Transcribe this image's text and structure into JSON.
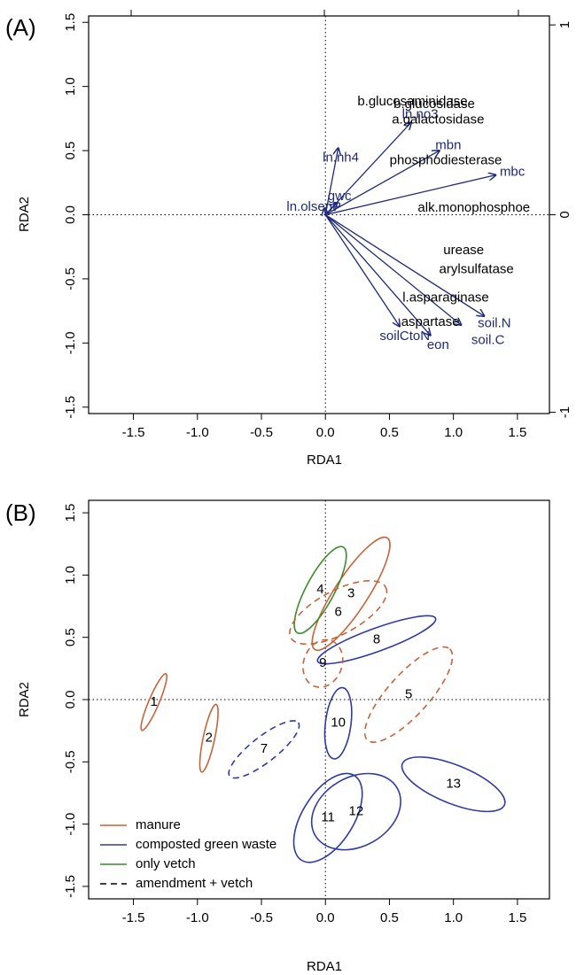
{
  "colors": {
    "manure": "#c8643a",
    "compost": "#2e3aa8",
    "vetch": "#3c8c2a",
    "vector": "#1e2a78",
    "enzyme_label": "#000000"
  },
  "chart_data": [
    {
      "panel": "(A)",
      "type": "biplot",
      "xlabel": "RDA1",
      "ylabel": "RDA2",
      "xlim": [
        -1.85,
        1.75
      ],
      "ylim": [
        -1.55,
        1.55
      ],
      "xticks": [
        "-1.5",
        "-1.0",
        "-0.5",
        "0.0",
        "0.5",
        "1.0",
        "1.5"
      ],
      "yticks": [
        "-1.5",
        "-1.0",
        "-0.5",
        "0.0",
        "0.5",
        "1.0",
        "1.5"
      ],
      "top_ticks": [],
      "right_ticks": [
        "-1",
        "0",
        "1"
      ],
      "vectors": [
        {
          "name": "ln.nh4",
          "x": 0.1,
          "y": 0.52
        },
        {
          "name": "ln.no3",
          "x": 0.67,
          "y": 0.72
        },
        {
          "name": "mbn",
          "x": 0.89,
          "y": 0.5
        },
        {
          "name": "mbc",
          "x": 1.33,
          "y": 0.31
        },
        {
          "name": "gwc",
          "x": 0.09,
          "y": 0.09
        },
        {
          "name": "ln.olsenP",
          "x": -0.01,
          "y": 0.05
        },
        {
          "name": "soilCtoN",
          "x": 0.58,
          "y": -0.87
        },
        {
          "name": "eon",
          "x": 0.82,
          "y": -0.94
        },
        {
          "name": "soil.C",
          "x": 1.06,
          "y": -0.86
        },
        {
          "name": "soil.N",
          "x": 1.24,
          "y": -0.79
        }
      ],
      "vector_labels": [
        {
          "text": "ln.nh4",
          "x": 0.12,
          "y": 0.44
        },
        {
          "text": "ln.no3",
          "x": 0.74,
          "y": 0.78
        },
        {
          "text": "mbn",
          "x": 0.96,
          "y": 0.54
        },
        {
          "text": "mbc",
          "x": 1.46,
          "y": 0.33
        },
        {
          "text": "gwc",
          "x": 0.11,
          "y": 0.14
        },
        {
          "text": "ln.olsenP",
          "x": -0.09,
          "y": 0.06
        },
        {
          "text": "soilCtoN",
          "x": 0.62,
          "y": -0.95
        },
        {
          "text": "eon",
          "x": 0.88,
          "y": -1.02
        },
        {
          "text": "soil.C",
          "x": 1.27,
          "y": -0.98
        },
        {
          "text": "soil.N",
          "x": 1.32,
          "y": -0.85
        }
      ],
      "enzyme_labels": [
        {
          "text": "b.glucosaminidase",
          "x": 0.68,
          "y": 0.88
        },
        {
          "text": "b.glucosidase",
          "x": 0.85,
          "y": 0.86
        },
        {
          "text": "a.galactosidase",
          "x": 0.88,
          "y": 0.74
        },
        {
          "text": "phosphodiesterase",
          "x": 0.94,
          "y": 0.42
        },
        {
          "text": "alk.monophosphoe",
          "x": 1.16,
          "y": 0.05
        },
        {
          "text": "urease",
          "x": 1.08,
          "y": -0.28
        },
        {
          "text": "arylsulfatase",
          "x": 1.18,
          "y": -0.43
        },
        {
          "text": "l.asparaginase",
          "x": 0.94,
          "y": -0.65
        },
        {
          "text": "aspartase",
          "x": 0.82,
          "y": -0.84
        }
      ]
    },
    {
      "panel": "(B)",
      "type": "ellipse-ordination",
      "xlabel": "RDA1",
      "ylabel": "RDA2",
      "xlim": [
        -1.85,
        1.75
      ],
      "ylim": [
        -1.6,
        1.6
      ],
      "xticks": [
        "-1.5",
        "-1.0",
        "-0.5",
        "0.0",
        "0.5",
        "1.0",
        "1.5"
      ],
      "yticks": [
        "-1.5",
        "-1.0",
        "-0.5",
        "0.0",
        "0.5",
        "1.0",
        "1.5"
      ],
      "ellipses": [
        {
          "id": "1",
          "group": "manure",
          "dashed": false,
          "cx": -1.34,
          "cy": -0.02,
          "rx": 0.24,
          "ry": 0.04,
          "angle": 67
        },
        {
          "id": "2",
          "group": "manure",
          "dashed": false,
          "cx": -0.91,
          "cy": -0.31,
          "rx": 0.27,
          "ry": 0.045,
          "angle": 78
        },
        {
          "id": "3",
          "group": "manure",
          "dashed": false,
          "cx": 0.2,
          "cy": 0.85,
          "rx": 0.52,
          "ry": 0.13,
          "angle": 57
        },
        {
          "id": "4",
          "group": "vetch",
          "dashed": false,
          "cx": -0.04,
          "cy": 0.88,
          "rx": 0.38,
          "ry": 0.11,
          "angle": 62
        },
        {
          "id": "5",
          "group": "manure",
          "dashed": true,
          "cx": 0.65,
          "cy": 0.04,
          "rx": 0.48,
          "ry": 0.16,
          "angle": 48
        },
        {
          "id": "6",
          "group": "manure",
          "dashed": true,
          "cx": 0.1,
          "cy": 0.7,
          "rx": 0.42,
          "ry": 0.17,
          "angle": 28
        },
        {
          "id": "7",
          "group": "compost",
          "dashed": true,
          "cx": -0.48,
          "cy": -0.4,
          "rx": 0.34,
          "ry": 0.1,
          "angle": 38
        },
        {
          "id": "8",
          "group": "compost",
          "dashed": false,
          "cx": 0.4,
          "cy": 0.48,
          "rx": 0.49,
          "ry": 0.09,
          "angle": 20
        },
        {
          "id": "9",
          "group": "manure",
          "dashed": true,
          "cx": -0.02,
          "cy": 0.29,
          "rx": 0.19,
          "ry": 0.15,
          "angle": 70
        },
        {
          "id": "10",
          "group": "compost",
          "dashed": false,
          "cx": 0.1,
          "cy": -0.19,
          "rx": 0.28,
          "ry": 0.1,
          "angle": 83
        },
        {
          "id": "11",
          "group": "compost",
          "dashed": false,
          "cx": 0.02,
          "cy": -0.95,
          "rx": 0.39,
          "ry": 0.2,
          "angle": 58
        },
        {
          "id": "12",
          "group": "compost",
          "dashed": false,
          "cx": 0.24,
          "cy": -0.9,
          "rx": 0.37,
          "ry": 0.27,
          "angle": 30
        },
        {
          "id": "13",
          "group": "compost",
          "dashed": false,
          "cx": 1.0,
          "cy": -0.68,
          "rx": 0.43,
          "ry": 0.15,
          "angle": -22
        }
      ],
      "legend": [
        {
          "label": "manure",
          "group": "manure",
          "dashed": false
        },
        {
          "label": "composted green waste",
          "group": "compost",
          "dashed": false
        },
        {
          "label": "only vetch",
          "group": "vetch",
          "dashed": false
        },
        {
          "label": "amendment + vetch",
          "group": "black",
          "dashed": true
        }
      ],
      "legend_position": "bottom-left"
    }
  ]
}
